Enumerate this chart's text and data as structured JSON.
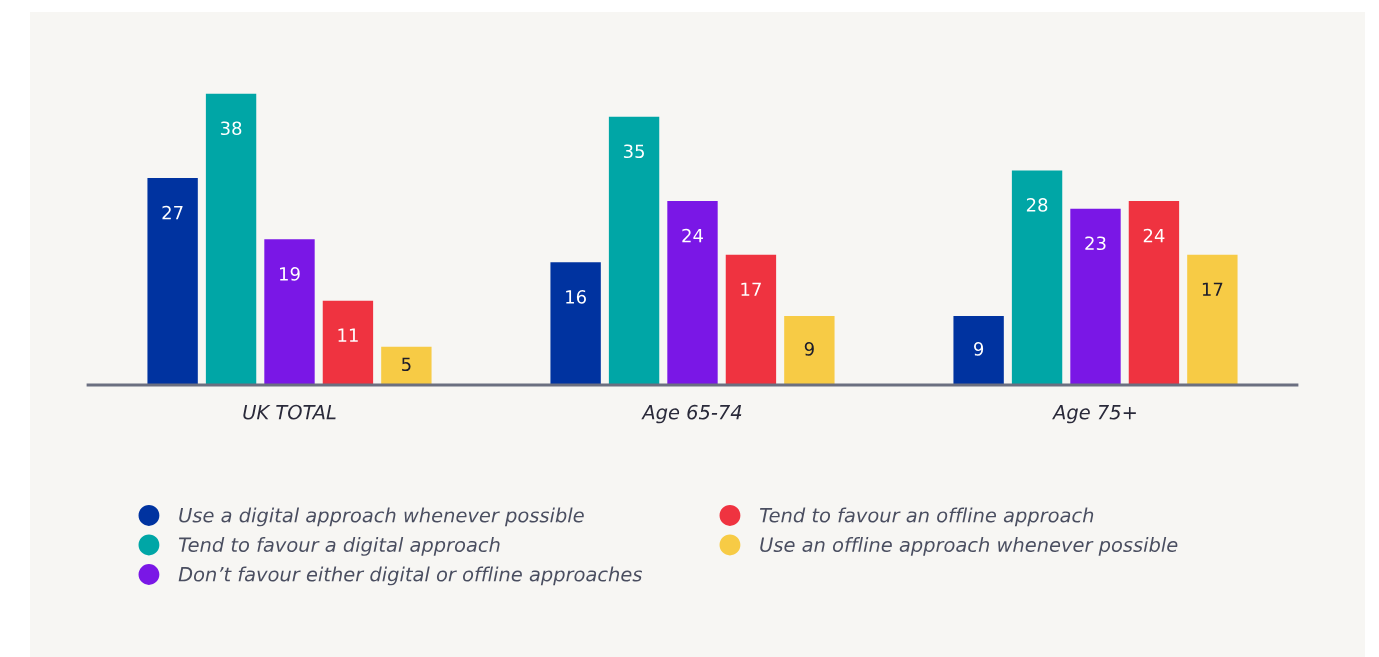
{
  "chart_data": {
    "type": "bar",
    "categories": [
      "UK TOTAL",
      "Age 65-74",
      "Age 75+"
    ],
    "series": [
      {
        "name": "Use a digital approach whenever possible",
        "color": "#0033a0",
        "values": [
          27,
          16,
          9
        ]
      },
      {
        "name": "Tend to favour a digital approach",
        "color": "#00a6a6",
        "values": [
          38,
          35,
          28
        ]
      },
      {
        "name": "Don’t favour either digital or offline approaches",
        "color": "#7a17e6",
        "values": [
          19,
          24,
          23
        ]
      },
      {
        "name": "Tend to favour an offline approach",
        "color": "#ef3340",
        "values": [
          11,
          17,
          24
        ]
      },
      {
        "name": "Use an offline approach whenever possible",
        "color": "#f7cb45",
        "values": [
          5,
          9,
          17
        ]
      }
    ],
    "data_labels": true,
    "legend": "bottom",
    "grid": false
  }
}
